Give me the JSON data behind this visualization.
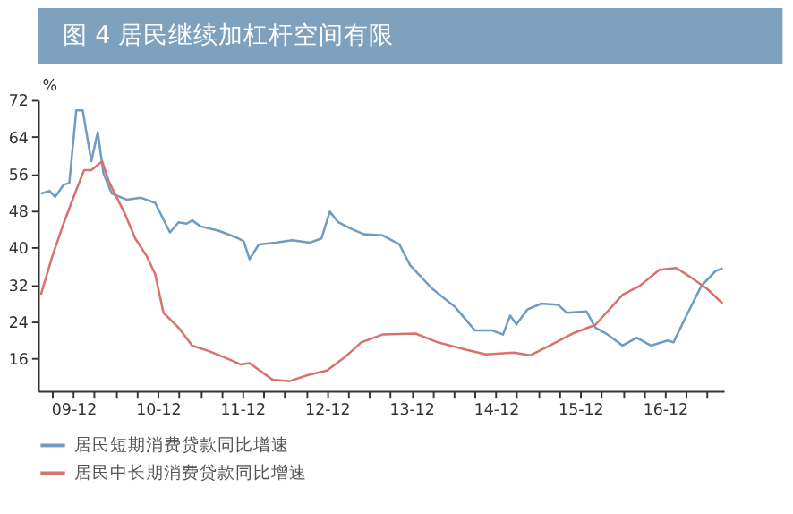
{
  "chart_data": {
    "type": "line",
    "title": "图 4  居民继续加杠杆空间有限",
    "ylabel": "%",
    "xlim": [
      "2009-07-01",
      "2017-08-12"
    ],
    "ylim": [
      9,
      72
    ],
    "yticks": [
      16,
      24,
      32,
      40,
      48,
      56,
      64,
      72
    ],
    "xticks": [
      {
        "value": "2009-09-01",
        "label": null
      },
      {
        "value": "2009-12-01",
        "label": "09-12"
      },
      {
        "value": "2010-03-01",
        "label": null
      },
      {
        "value": "2010-06-01",
        "label": null
      },
      {
        "value": "2010-09-01",
        "label": null
      },
      {
        "value": "2010-12-01",
        "label": "10-12"
      },
      {
        "value": "2011-03-01",
        "label": null
      },
      {
        "value": "2011-06-01",
        "label": null
      },
      {
        "value": "2011-09-01",
        "label": null
      },
      {
        "value": "2011-12-01",
        "label": "11-12"
      },
      {
        "value": "2012-03-01",
        "label": null
      },
      {
        "value": "2012-06-01",
        "label": null
      },
      {
        "value": "2012-09-01",
        "label": null
      },
      {
        "value": "2012-12-01",
        "label": "12-12"
      },
      {
        "value": "2013-03-01",
        "label": null
      },
      {
        "value": "2013-06-01",
        "label": null
      },
      {
        "value": "2013-09-01",
        "label": null
      },
      {
        "value": "2013-12-01",
        "label": "13-12"
      },
      {
        "value": "2014-03-01",
        "label": null
      },
      {
        "value": "2014-06-01",
        "label": null
      },
      {
        "value": "2014-09-01",
        "label": null
      },
      {
        "value": "2014-12-01",
        "label": "14-12"
      },
      {
        "value": "2015-03-01",
        "label": null
      },
      {
        "value": "2015-06-01",
        "label": null
      },
      {
        "value": "2015-09-01",
        "label": null
      },
      {
        "value": "2015-12-01",
        "label": "15-12"
      },
      {
        "value": "2016-03-01",
        "label": null
      },
      {
        "value": "2016-06-01",
        "label": null
      },
      {
        "value": "2016-09-01",
        "label": null
      },
      {
        "value": "2016-12-01",
        "label": "16-12"
      },
      {
        "value": "2017-03-01",
        "label": null
      },
      {
        "value": "2017-06-01",
        "label": null
      }
    ],
    "grid": false,
    "legend": "bottom",
    "marker": "none",
    "line_style": "solid",
    "series": [
      {
        "name": "居民短期消费贷款同比增速",
        "color": "#6f9cc0",
        "x": [
          "2009-07-13",
          "2009-08-19",
          "2009-09-13",
          "2009-10-19",
          "2009-11-13",
          "2009-12-13",
          "2010-01-10",
          "2010-02-16",
          "2010-03-16",
          "2010-04-10",
          "2010-05-16",
          "2010-07-19",
          "2010-09-19",
          "2010-11-19",
          "2011-01-22",
          "2011-02-28",
          "2011-04-04",
          "2011-04-28",
          "2011-06-04",
          "2011-08-19",
          "2011-11-01",
          "2011-12-07",
          "2012-01-01",
          "2012-02-10",
          "2012-04-22",
          "2012-07-04",
          "2012-09-19",
          "2012-11-07",
          "2012-12-13",
          "2013-01-19",
          "2013-03-10",
          "2013-05-10",
          "2013-07-28",
          "2013-10-10",
          "2013-11-25",
          "2014-03-01",
          "2014-06-07",
          "2014-09-01",
          "2014-11-13",
          "2015-01-01",
          "2015-02-01",
          "2015-02-28",
          "2015-04-16",
          "2015-06-16",
          "2015-08-28",
          "2015-10-04",
          "2015-12-28",
          "2016-02-04",
          "2016-03-22",
          "2016-06-01",
          "2016-08-01",
          "2016-10-01",
          "2016-12-13",
          "2017-01-07",
          "2017-02-25",
          "2017-05-07",
          "2017-07-07",
          "2017-08-07"
        ],
        "values": [
          51.7,
          52.3,
          51,
          53.6,
          54,
          69.7,
          69.7,
          58.7,
          65,
          56,
          51.7,
          50.4,
          50.8,
          49.7,
          43.3,
          45.5,
          45.2,
          45.9,
          44.6,
          43.7,
          42.3,
          41.4,
          37.5,
          40.7,
          41.1,
          41.6,
          41.1,
          42,
          47.8,
          45.5,
          44.2,
          42.9,
          42.7,
          40.7,
          36.2,
          31.1,
          27.2,
          22.1,
          22.1,
          21.2,
          25.3,
          23.4,
          26.6,
          27.9,
          27.6,
          25.9,
          26.2,
          22.7,
          21.4,
          18.8,
          20.5,
          18.8,
          19.9,
          19.5,
          24.6,
          31.7,
          34.9,
          35.6
        ]
      },
      {
        "name": "居民中长期消费贷款同比增速",
        "color": "#d9716c",
        "x": [
          "2009-07-13",
          "2009-09-01",
          "2009-10-19",
          "2009-12-07",
          "2010-01-16",
          "2010-02-16",
          "2010-04-04",
          "2010-05-04",
          "2010-07-07",
          "2010-08-25",
          "2010-10-13",
          "2010-11-19",
          "2010-12-25",
          "2011-02-28",
          "2011-04-28",
          "2011-07-10",
          "2011-09-13",
          "2011-11-25",
          "2012-01-01",
          "2012-04-10",
          "2012-06-22",
          "2012-09-07",
          "2012-12-01",
          "2013-02-16",
          "2013-04-28",
          "2013-07-28",
          "2013-12-19",
          "2014-03-25",
          "2014-07-25",
          "2014-10-19",
          "2015-02-16",
          "2015-04-28",
          "2015-07-22",
          "2015-10-28",
          "2016-02-04",
          "2016-06-01",
          "2016-08-13",
          "2016-11-07",
          "2017-01-19",
          "2017-03-19",
          "2017-06-01",
          "2017-08-07"
        ],
        "values": [
          29.8,
          38.2,
          45.2,
          51.7,
          56.8,
          56.8,
          58.7,
          54.2,
          47.8,
          42,
          38.2,
          34.3,
          25.9,
          22.7,
          18.8,
          17.6,
          16.3,
          14.7,
          15,
          11.4,
          11.1,
          12.4,
          13.4,
          16.3,
          19.5,
          21.2,
          21.4,
          19.5,
          17.9,
          16.9,
          17.3,
          16.7,
          18.8,
          21.4,
          23.3,
          29.8,
          31.7,
          35.2,
          35.6,
          33.7,
          31.1,
          27.9
        ]
      }
    ]
  }
}
